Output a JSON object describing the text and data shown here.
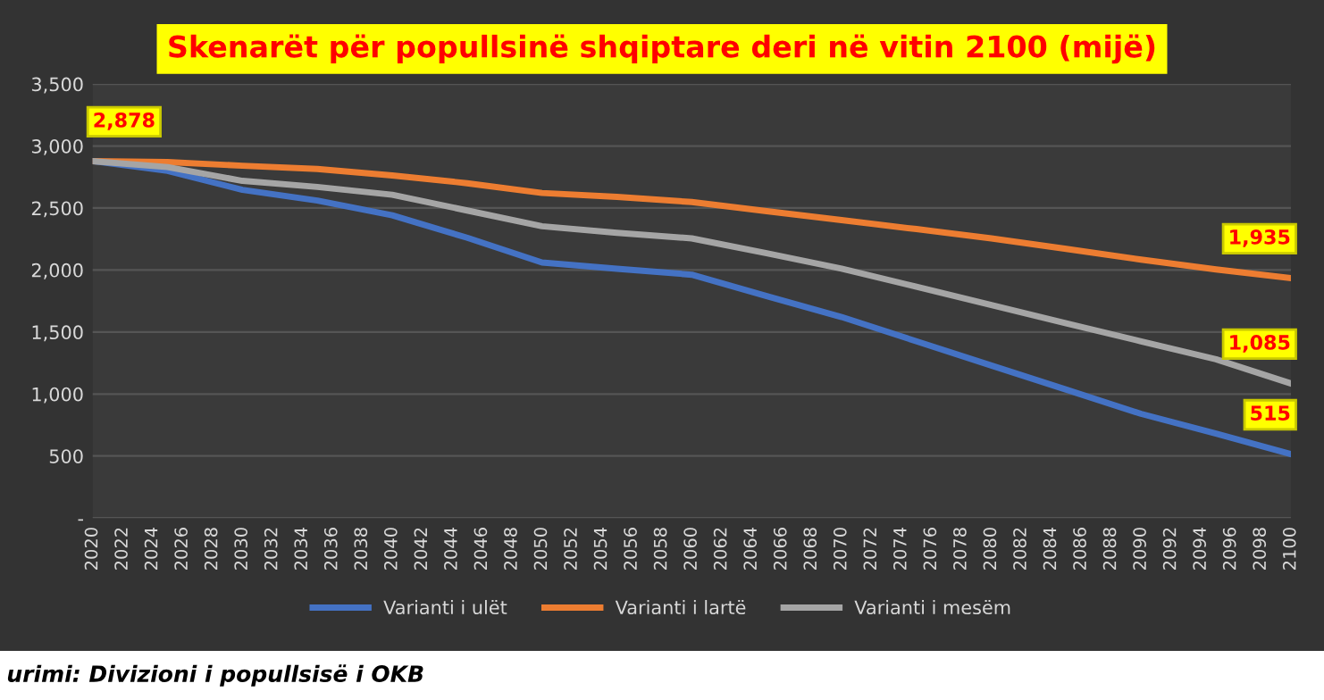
{
  "chart_data": {
    "type": "line",
    "title": "Skenarët për popullsinë shqiptare deri në vitin 2100 (mijë)",
    "x": [
      2020,
      2025,
      2030,
      2035,
      2040,
      2045,
      2050,
      2055,
      2060,
      2065,
      2070,
      2075,
      2080,
      2085,
      2090,
      2095,
      2100
    ],
    "series": [
      {
        "name": "Varianti i ulët",
        "color": "#4472c4",
        "values": [
          2878,
          2800,
          2646,
          2560,
          2441,
          2260,
          2060,
          2010,
          1962,
          1790,
          1621,
          1425,
          1230,
          1035,
          840,
          680,
          515
        ],
        "value_labels": [
          null,
          null,
          null,
          null,
          null,
          null,
          null,
          null,
          null,
          null,
          null,
          null,
          null,
          null,
          null,
          null,
          "515"
        ]
      },
      {
        "name": "Varianti i lartë",
        "color": "#ed7d31",
        "values": [
          2878,
          2870,
          2841,
          2815,
          2763,
          2700,
          2621,
          2590,
          2548,
          2475,
          2402,
          2330,
          2255,
          2170,
          2084,
          2005,
          1935
        ],
        "value_labels": [
          null,
          null,
          null,
          null,
          null,
          null,
          null,
          null,
          null,
          null,
          null,
          null,
          null,
          null,
          null,
          null,
          "1,935"
        ]
      },
      {
        "name": "Varianti i mesëm",
        "color": "#a5a5a5",
        "values": [
          2878,
          2830,
          2719,
          2670,
          2607,
          2480,
          2353,
          2300,
          2255,
          2135,
          2011,
          1865,
          1718,
          1570,
          1425,
          1280,
          1085
        ],
        "value_labels": [
          "2,878",
          null,
          null,
          null,
          null,
          null,
          null,
          null,
          null,
          null,
          null,
          null,
          null,
          null,
          null,
          null,
          "1,085"
        ]
      }
    ],
    "xlim": [
      2020,
      2100
    ],
    "xticks": [
      2020,
      2022,
      2024,
      2026,
      2028,
      2030,
      2032,
      2034,
      2036,
      2038,
      2040,
      2042,
      2044,
      2046,
      2048,
      2050,
      2052,
      2054,
      2056,
      2058,
      2060,
      2062,
      2064,
      2066,
      2068,
      2070,
      2072,
      2074,
      2076,
      2078,
      2080,
      2082,
      2084,
      2086,
      2088,
      2090,
      2092,
      2094,
      2096,
      2098,
      2100
    ],
    "ylim": [
      0,
      3500
    ],
    "yticks": [
      {
        "value": 0,
        "label": "-"
      },
      {
        "value": 500,
        "label": "500"
      },
      {
        "value": 1000,
        "label": "1,000"
      },
      {
        "value": 1500,
        "label": "1,500"
      },
      {
        "value": 2000,
        "label": "2,000"
      },
      {
        "value": 2500,
        "label": "2,500"
      },
      {
        "value": 3000,
        "label": "3,000"
      },
      {
        "value": 3500,
        "label": "3,500"
      }
    ],
    "grid": "y",
    "legend": "bottom",
    "marker": "none",
    "line_style": "solid",
    "annotations": [
      "urimi: Divizioni i popullsisë i OKB"
    ]
  }
}
